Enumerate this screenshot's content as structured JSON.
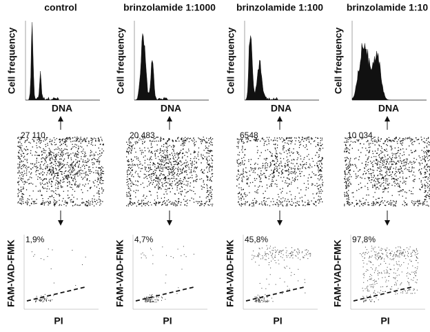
{
  "panels": [
    {
      "title": "control",
      "hist_ylabel": "Cell frequency",
      "hist_xlabel": "DNA",
      "count": "27 110",
      "percent": "1,9%",
      "scatter_ylabel": "FAM-VAD-FMK",
      "scatter_xlabel": "PI"
    },
    {
      "title": "brinzolamide 1:1000",
      "hist_ylabel": "Cell frequency",
      "hist_xlabel": "DNA",
      "count": "20 483",
      "percent": "4,7%",
      "scatter_ylabel": "FAM-VAD-FMK",
      "scatter_xlabel": "PI"
    },
    {
      "title": "brinzolamide 1:100",
      "hist_ylabel": "Cell frequency",
      "hist_xlabel": "DNA",
      "count": "6548",
      "percent": "45,8%",
      "scatter_ylabel": "FAM-VAD-FMK",
      "scatter_xlabel": "PI"
    },
    {
      "title": "brinzolamide 1:10",
      "hist_ylabel": "Cell frequency",
      "hist_xlabel": "DNA",
      "count": "10 034",
      "percent": "97,8%",
      "scatter_ylabel": "FAM-VAD-FMK",
      "scatter_xlabel": "PI"
    }
  ]
}
